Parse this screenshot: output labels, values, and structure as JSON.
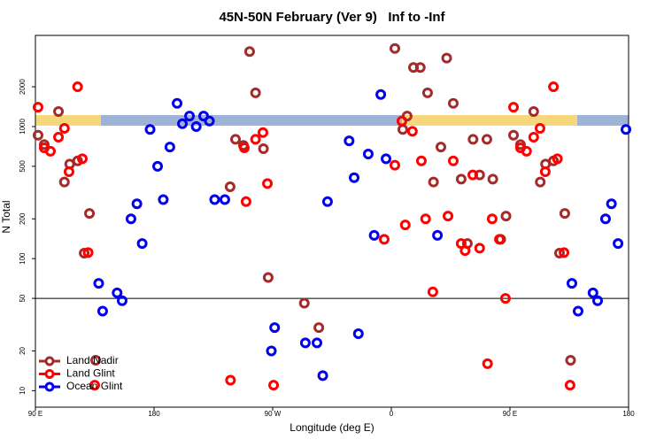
{
  "chart_data": {
    "type": "scatter",
    "title": "45N-50N February (Ver 9)   Inf to -Inf",
    "xlabel": "Longitude (deg E)",
    "ylabel": "N Total",
    "xlim": [
      90,
      540
    ],
    "ylim": [
      7.5,
      4900
    ],
    "log_y": true,
    "xticks": [
      {
        "value": 90,
        "label": "90 E"
      },
      {
        "value": 180,
        "label": "180"
      },
      {
        "value": 270,
        "label": "90 W"
      },
      {
        "value": 360,
        "label": "0"
      },
      {
        "value": 450,
        "label": "90 E"
      },
      {
        "value": 540,
        "label": "180"
      }
    ],
    "yticks": [
      10,
      20,
      50,
      100,
      200,
      500,
      1000,
      2000
    ],
    "hline": 50,
    "legend": "lower left",
    "series": [
      {
        "name": "Land Nadir",
        "color": "#a52a2a",
        "x": [
          92,
          96.7,
          107.5,
          112,
          116,
          122,
          131,
          127,
          135.7,
          237.7,
          241.8,
          247.8,
          252.5,
          257,
          263,
          266.6,
          294,
          305,
          362.7,
          368.7,
          372,
          376.8,
          382,
          387.5,
          392,
          397.6,
          402,
          407,
          413,
          417.7,
          422,
          427,
          432.5,
          437,
          443,
          447,
          452.7,
          458,
          468,
          473,
          477,
          483,
          491.6,
          487.6,
          496
        ],
        "values": [
          860,
          730,
          1300,
          380,
          520,
          550,
          220,
          110,
          17,
          350,
          800,
          720,
          3700,
          1800,
          680,
          72,
          46,
          30,
          3900,
          950,
          1200,
          2800,
          2800,
          1800,
          380,
          700,
          3300,
          1500,
          400,
          130,
          800,
          430,
          800,
          400,
          140,
          210,
          860,
          730,
          1300,
          380,
          520,
          550,
          220,
          110,
          17
        ]
      },
      {
        "name": "Land Glint",
        "color": "#ff0000",
        "x": [
          92,
          96.7,
          101.4,
          107.5,
          112,
          115.5,
          125.6,
          122,
          130,
          135,
          238,
          248.5,
          249.8,
          257,
          262.6,
          266,
          270.7,
          354.6,
          362.7,
          368,
          370.6,
          376,
          382.8,
          386,
          391.5,
          403,
          407,
          413,
          416,
          421.8,
          427,
          433,
          436.5,
          442,
          446.6,
          452.7,
          458,
          462.6,
          468,
          472.8,
          476.8,
          486,
          483,
          491,
          495.6
        ],
        "values": [
          1400,
          690,
          650,
          830,
          970,
          455,
          570,
          2000,
          111,
          11,
          12,
          690,
          270,
          800,
          900,
          370,
          11,
          140,
          510,
          1100,
          180,
          920,
          550,
          200,
          56,
          210,
          550,
          130,
          115,
          430,
          120,
          16,
          200,
          140,
          50,
          1400,
          690,
          650,
          830,
          970,
          455,
          570,
          2000,
          111,
          11
        ]
      },
      {
        "name": "Ocean Glint",
        "color": "#0000ee",
        "x": [
          138,
          141,
          152,
          155.8,
          162.5,
          167,
          171,
          177,
          182.7,
          187,
          192,
          197.5,
          201.5,
          206.9,
          212,
          217.6,
          222,
          226,
          233.7,
          269,
          271.5,
          294.8,
          303.6,
          308,
          311.6,
          328,
          331.8,
          335,
          342.5,
          347,
          352,
          356,
          395,
          497,
          501.7,
          513,
          516.5,
          522.5,
          527,
          532,
          538
        ],
        "values": [
          65,
          40,
          55,
          48,
          200,
          260,
          130,
          950,
          500,
          280,
          700,
          1500,
          1050,
          1200,
          1000,
          1200,
          1100,
          280,
          280,
          20,
          30,
          23,
          23,
          13,
          270,
          780,
          410,
          27,
          620,
          150,
          1750,
          570,
          150,
          65,
          40,
          55,
          48,
          200,
          260,
          130,
          950
        ]
      }
    ]
  }
}
